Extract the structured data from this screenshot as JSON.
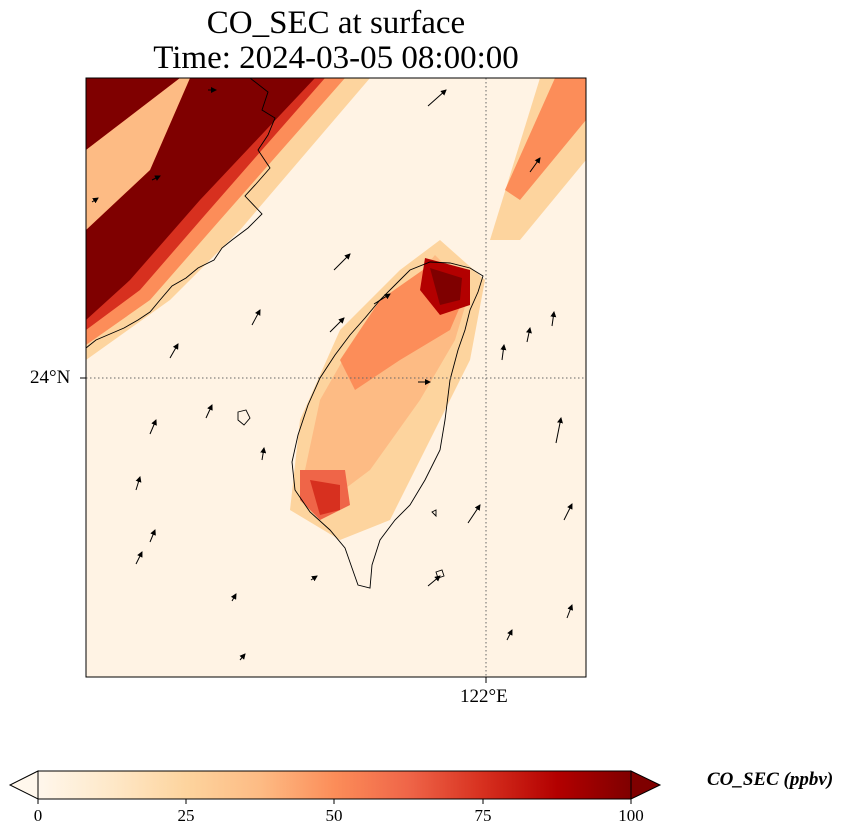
{
  "title_line1": "CO_SEC at surface",
  "title_line2": "Time: 2024-03-05 08:00:00",
  "axes": {
    "lat_tick_label": "24°N",
    "lon_tick_label": "122°E"
  },
  "colorbar": {
    "label": "CO_SEC (ppbv)",
    "ticks": [
      "0",
      "25",
      "50",
      "75",
      "100"
    ],
    "min": 0,
    "max": 100,
    "extend": "both",
    "colormap": "OrRd",
    "colors": [
      "#fff7ec",
      "#fee8c8",
      "#fdd49e",
      "#fdbb84",
      "#fc8d59",
      "#ef6548",
      "#d7301f",
      "#b30000",
      "#7f0000"
    ]
  },
  "map": {
    "gridlines": "dotted",
    "features": [
      "Taiwan coastline",
      "China coastline",
      "wind vectors"
    ]
  }
}
